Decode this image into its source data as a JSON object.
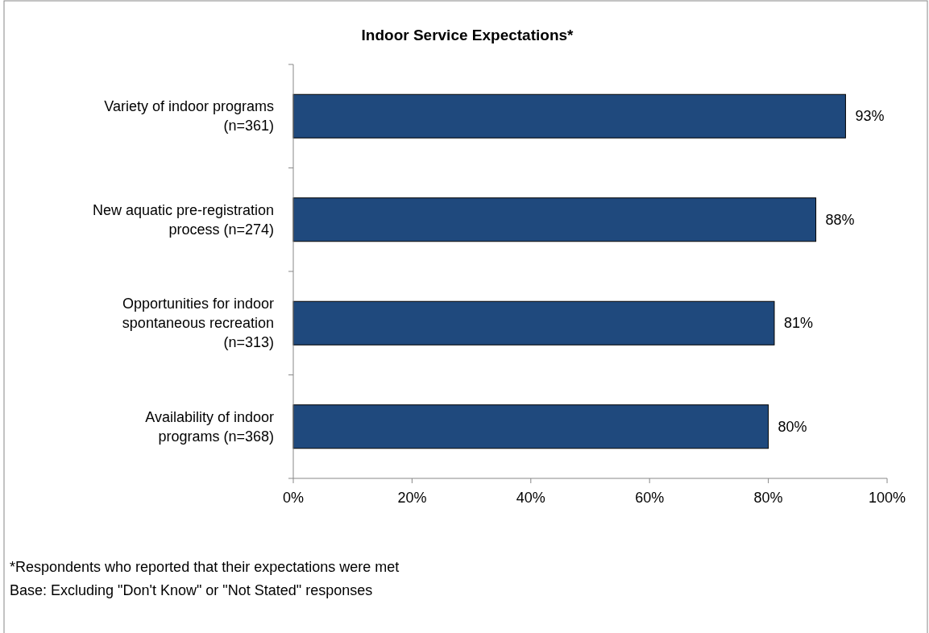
{
  "chart_data": {
    "type": "bar",
    "orientation": "horizontal",
    "title": "Indoor Service Expectations*",
    "categories": [
      "Variety of indoor programs (n=361)",
      "New aquatic pre-registration process (n=274)",
      "Opportunities for indoor spontaneous recreation (n=313)",
      "Availability of indoor programs (n=368)"
    ],
    "values": [
      93,
      88,
      81,
      80
    ],
    "value_labels": [
      "93%",
      "88%",
      "81%",
      "80%"
    ],
    "color": "#1f497d",
    "xlim": [
      0,
      100
    ],
    "xticks": [
      {
        "value": 0,
        "label": "0%"
      },
      {
        "value": 20,
        "label": "20%"
      },
      {
        "value": 40,
        "label": "40%"
      },
      {
        "value": 60,
        "label": "60%"
      },
      {
        "value": 80,
        "label": "80%"
      },
      {
        "value": 100,
        "label": "100%"
      }
    ],
    "grid": false,
    "annotations": [
      "*Respondents who reported that their expectations were met",
      "Base: Excluding \"Don't Know\" or \"Not Stated\" responses"
    ]
  }
}
